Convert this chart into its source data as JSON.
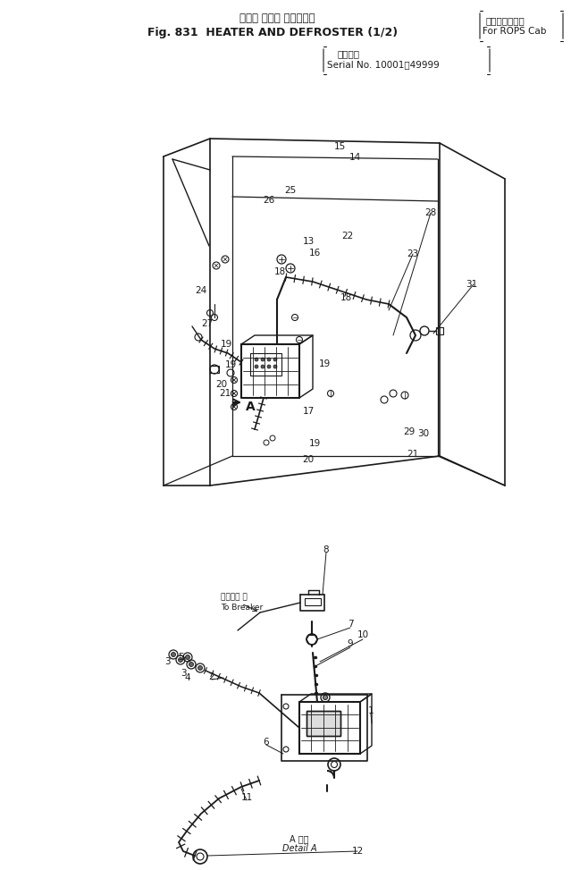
{
  "bg_color": "#ffffff",
  "line_color": "#1a1a1a",
  "title_jp": "ヒータ および デフロスタ",
  "title_en": "Fig. 831  HEATER AND DEFROSTER (1/2)",
  "rops_jp": "ロプスキャブ用",
  "rops_en": "For ROPS Cab",
  "serial_jp": "適用号機",
  "serial_en": "Serial No. 10001～49999",
  "detail_jp": "A 拡大",
  "detail_en": "Detail A",
  "fig_width": 6.39,
  "fig_height": 9.73,
  "dpi": 100
}
